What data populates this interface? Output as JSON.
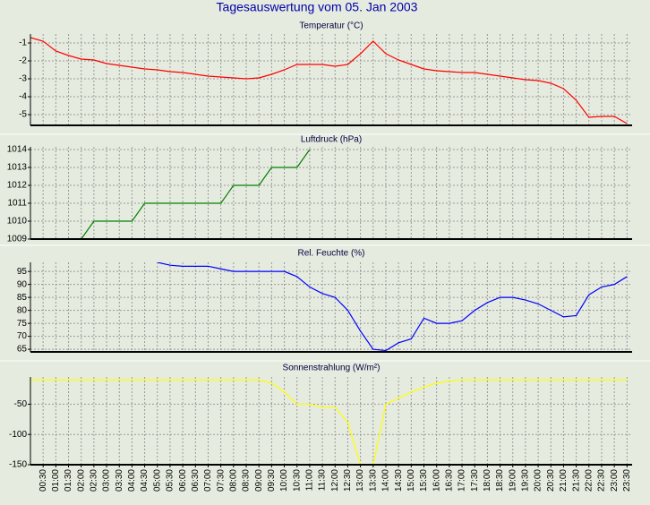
{
  "title": "Tagesauswertung vom 05. Jan 2003",
  "chart_data": [
    {
      "type": "line",
      "title": "Temperatur (°C)",
      "color": "#ff0000",
      "x": [
        0,
        0.5,
        1,
        1.5,
        2,
        2.5,
        3,
        3.5,
        4,
        4.5,
        5,
        5.5,
        6,
        6.5,
        7,
        7.5,
        8,
        8.5,
        9,
        9.5,
        10,
        10.5,
        11,
        11.5,
        12,
        12.5,
        13,
        13.5,
        14,
        14.5,
        15,
        15.5,
        16,
        16.5,
        17,
        17.5,
        18,
        18.5,
        19,
        19.5,
        20,
        20.5,
        21,
        21.5,
        22,
        22.5,
        23,
        23.5
      ],
      "values": [
        -0.7,
        -0.9,
        -1.45,
        -1.7,
        -1.9,
        -1.95,
        -2.15,
        -2.25,
        -2.35,
        -2.45,
        -2.5,
        -2.6,
        -2.65,
        -2.75,
        -2.85,
        -2.9,
        -2.95,
        -3.0,
        -2.95,
        -2.75,
        -2.5,
        -2.2,
        -2.2,
        -2.2,
        -2.3,
        -2.2,
        -1.6,
        -0.9,
        -1.6,
        -1.95,
        -2.2,
        -2.45,
        -2.55,
        -2.6,
        -2.65,
        -2.65,
        -2.75,
        -2.85,
        -2.95,
        -3.05,
        -3.1,
        -3.25,
        -3.55,
        -4.2,
        -5.15,
        -5.1,
        -5.1,
        -5.5
      ],
      "xlim": [
        0,
        23.7
      ],
      "ylim": [
        -5.6,
        -0.5
      ],
      "yticks": [
        -1,
        -2,
        -3,
        -4,
        -5
      ],
      "grid": true
    },
    {
      "type": "line",
      "title": "Luftdruck (hPa)",
      "color": "#008000",
      "x": [
        2,
        2.5,
        4,
        4.5,
        7.5,
        8,
        9,
        9.5,
        10.5,
        11
      ],
      "values": [
        1009,
        1010,
        1010,
        1011,
        1011,
        1012,
        1012,
        1013,
        1013,
        1014
      ],
      "xlim": [
        0,
        23.7
      ],
      "ylim": [
        1009,
        1014.15
      ],
      "yticks": [
        1009,
        1010,
        1011,
        1012,
        1013,
        1014
      ],
      "grid": true
    },
    {
      "type": "line",
      "title": "Rel. Feuchte (%)",
      "color": "#0000ff",
      "x": [
        5,
        5.5,
        6,
        7,
        7.5,
        8,
        9,
        10,
        10.5,
        11,
        11.5,
        12,
        12.5,
        13,
        13.5,
        14,
        14.5,
        15,
        15.5,
        16,
        16.5,
        17,
        17.5,
        18,
        18.5,
        19,
        19.5,
        20,
        20.5,
        21,
        21.5,
        22,
        22.5,
        23,
        23.5
      ],
      "values": [
        98.5,
        97.4,
        97,
        97,
        96,
        95,
        95,
        95,
        93,
        89,
        86.5,
        85,
        80,
        72,
        65,
        64.5,
        67.5,
        69,
        77,
        75,
        75,
        76,
        80,
        83,
        85,
        85,
        84,
        82.5,
        80,
        77.5,
        78,
        86,
        89,
        90,
        93
      ],
      "xlim": [
        0,
        23.7
      ],
      "ylim": [
        64,
        98.5
      ],
      "yticks": [
        95,
        90,
        85,
        80,
        75,
        70,
        65
      ],
      "grid": true
    },
    {
      "type": "line",
      "title": "Sonnenstrahlung (W/m²)",
      "color": "#ffff00",
      "x": [
        0,
        9,
        9.5,
        10,
        10.5,
        11,
        11.5,
        12,
        12.5,
        13,
        13.5,
        14,
        14.5,
        15,
        15.5,
        16,
        16.5,
        17,
        23.5
      ],
      "values": [
        -10,
        -10,
        -15,
        -30,
        -50,
        -50,
        -55,
        -55,
        -80,
        -150,
        -150,
        -50,
        -40,
        -30,
        -22,
        -15,
        -12,
        -10,
        -10
      ],
      "xlim": [
        0,
        23.7
      ],
      "ylim": [
        -150,
        -5
      ],
      "yticks": [
        -50,
        -100,
        -150
      ],
      "grid": true,
      "xticks": [
        {
          "value": 0.5,
          "label": "00:30"
        },
        {
          "value": 1,
          "label": "01:00"
        },
        {
          "value": 1.5,
          "label": "01:30"
        },
        {
          "value": 2,
          "label": "02:00"
        },
        {
          "value": 2.5,
          "label": "02:30"
        },
        {
          "value": 3,
          "label": "03:00"
        },
        {
          "value": 3.5,
          "label": "03:30"
        },
        {
          "value": 4,
          "label": "04:00"
        },
        {
          "value": 4.5,
          "label": "04:30"
        },
        {
          "value": 5,
          "label": "05:00"
        },
        {
          "value": 5.5,
          "label": "05:30"
        },
        {
          "value": 6,
          "label": "06:00"
        },
        {
          "value": 6.5,
          "label": "06:30"
        },
        {
          "value": 7,
          "label": "07:00"
        },
        {
          "value": 7.5,
          "label": "07:30"
        },
        {
          "value": 8,
          "label": "08:00"
        },
        {
          "value": 8.5,
          "label": "08:30"
        },
        {
          "value": 9,
          "label": "09:00"
        },
        {
          "value": 9.5,
          "label": "09:30"
        },
        {
          "value": 10,
          "label": "10:00"
        },
        {
          "value": 10.5,
          "label": "10:30"
        },
        {
          "value": 11,
          "label": "11:00"
        },
        {
          "value": 11.5,
          "label": "11:30"
        },
        {
          "value": 12,
          "label": "12:00"
        },
        {
          "value": 12.5,
          "label": "12:30"
        },
        {
          "value": 13,
          "label": "13:00"
        },
        {
          "value": 13.5,
          "label": "13:30"
        },
        {
          "value": 14,
          "label": "14:00"
        },
        {
          "value": 14.5,
          "label": "14:30"
        },
        {
          "value": 15,
          "label": "15:00"
        },
        {
          "value": 15.5,
          "label": "15:30"
        },
        {
          "value": 16,
          "label": "16:00"
        },
        {
          "value": 16.5,
          "label": "16:30"
        },
        {
          "value": 17,
          "label": "17:00"
        },
        {
          "value": 17.5,
          "label": "17:30"
        },
        {
          "value": 18,
          "label": "18:00"
        },
        {
          "value": 18.5,
          "label": "18:30"
        },
        {
          "value": 19,
          "label": "19:00"
        },
        {
          "value": 19.5,
          "label": "19:30"
        },
        {
          "value": 20,
          "label": "20:00"
        },
        {
          "value": 20.5,
          "label": "20:30"
        },
        {
          "value": 21,
          "label": "21:00"
        },
        {
          "value": 21.5,
          "label": "21:30"
        },
        {
          "value": 22,
          "label": "22:00"
        },
        {
          "value": 22.5,
          "label": "22:30"
        },
        {
          "value": 23,
          "label": "23:00"
        },
        {
          "value": 23.5,
          "label": "23:30"
        }
      ]
    }
  ]
}
